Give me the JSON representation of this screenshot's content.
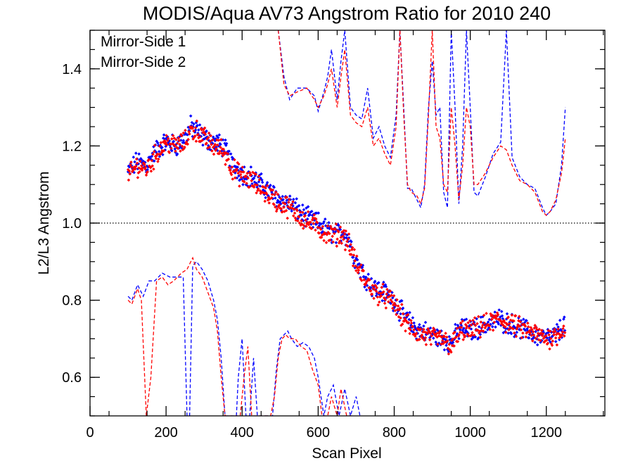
{
  "chart_data": {
    "type": "scatter",
    "title": "MODIS/Aqua AV73 Angstrom Ratio for 2010 240",
    "xlabel": "Scan Pixel",
    "ylabel": "L2/L3 Angstrom",
    "xlim": [
      0,
      1354
    ],
    "ylim": [
      0.5,
      1.5
    ],
    "xticks": [
      0,
      200,
      400,
      600,
      800,
      1000,
      1200
    ],
    "yticks": [
      0.6,
      0.8,
      1.0,
      1.2,
      1.4
    ],
    "xtick_labels": [
      "0",
      "200",
      "400",
      "600",
      "800",
      "1000",
      "1200"
    ],
    "ytick_labels": [
      "0.6",
      "0.8",
      "1.0",
      "1.2",
      "1.4"
    ],
    "reference_line": 1.0,
    "legend_position": "top-left",
    "grid": false,
    "series": [
      {
        "name": "Mirror-Side 1",
        "color": "#0000ff",
        "trend": {
          "x": [
            100,
            125,
            150,
            175,
            200,
            225,
            250,
            265,
            280,
            300,
            325,
            350,
            375,
            400,
            425,
            450,
            475,
            500,
            525,
            550,
            575,
            600,
            625,
            650,
            665,
            680,
            700,
            725,
            750,
            775,
            800,
            825,
            850,
            875,
            900,
            925,
            950,
            975,
            1000,
            1025,
            1050,
            1075,
            1100,
            1125,
            1150,
            1175,
            1200,
            1225,
            1250
          ],
          "y": [
            1.13,
            1.16,
            1.15,
            1.19,
            1.21,
            1.2,
            1.22,
            1.25,
            1.24,
            1.22,
            1.21,
            1.2,
            1.15,
            1.13,
            1.12,
            1.1,
            1.08,
            1.06,
            1.05,
            1.03,
            1.01,
            1.0,
            0.98,
            0.97,
            0.98,
            0.96,
            0.9,
            0.86,
            0.83,
            0.82,
            0.8,
            0.76,
            0.73,
            0.72,
            0.71,
            0.7,
            0.69,
            0.73,
            0.72,
            0.73,
            0.74,
            0.75,
            0.74,
            0.73,
            0.72,
            0.71,
            0.7,
            0.71,
            0.74
          ]
        },
        "upper_envelope": {
          "x": [
            495,
            510,
            525,
            545,
            570,
            590,
            600,
            615,
            625,
            635,
            650,
            660,
            670,
            685,
            700,
            715,
            730,
            745,
            760,
            775,
            790,
            805,
            815,
            825,
            835,
            845,
            860,
            870,
            880,
            890,
            900,
            910,
            920,
            930,
            940,
            950,
            960,
            970,
            980,
            990,
            1000,
            1010,
            1020,
            1040,
            1060,
            1080,
            1095,
            1110,
            1130,
            1150,
            1170,
            1190,
            1200,
            1210,
            1225,
            1240,
            1250
          ],
          "y": [
            1.5,
            1.38,
            1.32,
            1.35,
            1.35,
            1.33,
            1.29,
            1.34,
            1.38,
            1.45,
            1.32,
            1.42,
            1.5,
            1.3,
            1.28,
            1.27,
            1.35,
            1.22,
            1.25,
            1.2,
            1.17,
            1.28,
            1.5,
            1.3,
            1.09,
            1.09,
            1.06,
            1.04,
            1.1,
            1.3,
            1.42,
            1.28,
            1.3,
            1.08,
            1.04,
            1.5,
            1.3,
            1.05,
            1.2,
            1.5,
            1.3,
            1.08,
            1.07,
            1.12,
            1.18,
            1.21,
            1.5,
            1.17,
            1.12,
            1.1,
            1.09,
            1.04,
            1.02,
            1.03,
            1.05,
            1.15,
            1.3
          ]
        },
        "lower_envelope": {
          "x": [
            100,
            110,
            125,
            140,
            155,
            170,
            190,
            210,
            230,
            245,
            255,
            262,
            270,
            280,
            295,
            310,
            325,
            335,
            345,
            355,
            365,
            375,
            385,
            390,
            400,
            410,
            420,
            430,
            440,
            450,
            460,
            470,
            480,
            490,
            500,
            510,
            520,
            530,
            545,
            560,
            575,
            590,
            600,
            615,
            625,
            640,
            655,
            670,
            685,
            700,
            710
          ],
          "y": [
            0.81,
            0.8,
            0.84,
            0.81,
            0.85,
            0.85,
            0.87,
            0.86,
            0.86,
            0.86,
            0.5,
            0.5,
            0.89,
            0.9,
            0.88,
            0.85,
            0.8,
            0.75,
            0.65,
            0.5,
            0.5,
            0.5,
            0.5,
            0.6,
            0.7,
            0.5,
            0.5,
            0.65,
            0.5,
            0.5,
            0.5,
            0.5,
            0.5,
            0.62,
            0.7,
            0.71,
            0.72,
            0.7,
            0.68,
            0.69,
            0.68,
            0.65,
            0.6,
            0.5,
            0.55,
            0.58,
            0.5,
            0.57,
            0.5,
            0.55,
            0.5
          ]
        }
      },
      {
        "name": "Mirror-Side 2",
        "color": "#ff0000",
        "trend": {
          "x": [
            100,
            125,
            150,
            175,
            200,
            225,
            250,
            265,
            280,
            300,
            325,
            350,
            375,
            400,
            425,
            450,
            475,
            500,
            525,
            550,
            575,
            600,
            625,
            650,
            665,
            680,
            700,
            725,
            750,
            775,
            800,
            825,
            850,
            875,
            900,
            925,
            950,
            975,
            1000,
            1025,
            1050,
            1075,
            1100,
            1125,
            1150,
            1175,
            1200,
            1225,
            1250
          ],
          "y": [
            1.12,
            1.15,
            1.14,
            1.18,
            1.21,
            1.2,
            1.21,
            1.24,
            1.24,
            1.22,
            1.2,
            1.19,
            1.14,
            1.12,
            1.11,
            1.09,
            1.07,
            1.05,
            1.04,
            1.02,
            1.0,
            0.99,
            0.97,
            0.97,
            0.97,
            0.95,
            0.89,
            0.85,
            0.82,
            0.81,
            0.79,
            0.75,
            0.72,
            0.71,
            0.7,
            0.7,
            0.68,
            0.72,
            0.72,
            0.73,
            0.74,
            0.75,
            0.74,
            0.73,
            0.72,
            0.71,
            0.7,
            0.71,
            0.73
          ]
        },
        "upper_envelope": {
          "x": [
            495,
            510,
            525,
            545,
            570,
            590,
            600,
            615,
            625,
            635,
            650,
            660,
            670,
            685,
            700,
            715,
            730,
            745,
            760,
            775,
            790,
            805,
            815,
            825,
            835,
            845,
            860,
            870,
            880,
            890,
            900,
            910,
            920,
            930,
            940,
            950,
            960,
            970,
            980,
            990,
            1000,
            1010,
            1020,
            1040,
            1060,
            1080,
            1095,
            1110,
            1130,
            1150,
            1170,
            1190,
            1200,
            1210,
            1225,
            1240,
            1250
          ],
          "y": [
            1.5,
            1.36,
            1.33,
            1.34,
            1.35,
            1.32,
            1.3,
            1.33,
            1.36,
            1.4,
            1.3,
            1.38,
            1.45,
            1.28,
            1.26,
            1.25,
            1.3,
            1.2,
            1.22,
            1.18,
            1.15,
            1.25,
            1.5,
            1.28,
            1.1,
            1.08,
            1.07,
            1.05,
            1.09,
            1.28,
            1.5,
            1.25,
            1.22,
            1.1,
            1.08,
            1.3,
            1.2,
            1.06,
            1.15,
            1.3,
            1.25,
            1.1,
            1.1,
            1.13,
            1.17,
            1.2,
            1.19,
            1.15,
            1.11,
            1.1,
            1.08,
            1.03,
            1.02,
            1.03,
            1.06,
            1.13,
            1.22
          ]
        },
        "lower_envelope": {
          "x": [
            100,
            110,
            125,
            135,
            148,
            160,
            175,
            190,
            205,
            220,
            240,
            255,
            270,
            280,
            295,
            310,
            325,
            335,
            345,
            355,
            365,
            375,
            385,
            395,
            405,
            415,
            425,
            435,
            445,
            455,
            465,
            475,
            485,
            495,
            505,
            515,
            525,
            540,
            555,
            570,
            585,
            600,
            610,
            625,
            635,
            650,
            660,
            675,
            690
          ],
          "y": [
            0.8,
            0.79,
            0.83,
            0.8,
            0.5,
            0.6,
            0.85,
            0.86,
            0.84,
            0.85,
            0.87,
            0.88,
            0.91,
            0.88,
            0.86,
            0.82,
            0.78,
            0.72,
            0.6,
            0.5,
            0.5,
            0.5,
            0.5,
            0.5,
            0.6,
            0.68,
            0.5,
            0.5,
            0.5,
            0.5,
            0.5,
            0.5,
            0.55,
            0.65,
            0.7,
            0.71,
            0.7,
            0.7,
            0.68,
            0.67,
            0.62,
            0.58,
            0.5,
            0.5,
            0.55,
            0.5,
            0.57,
            0.5,
            0.5
          ]
        }
      }
    ]
  }
}
